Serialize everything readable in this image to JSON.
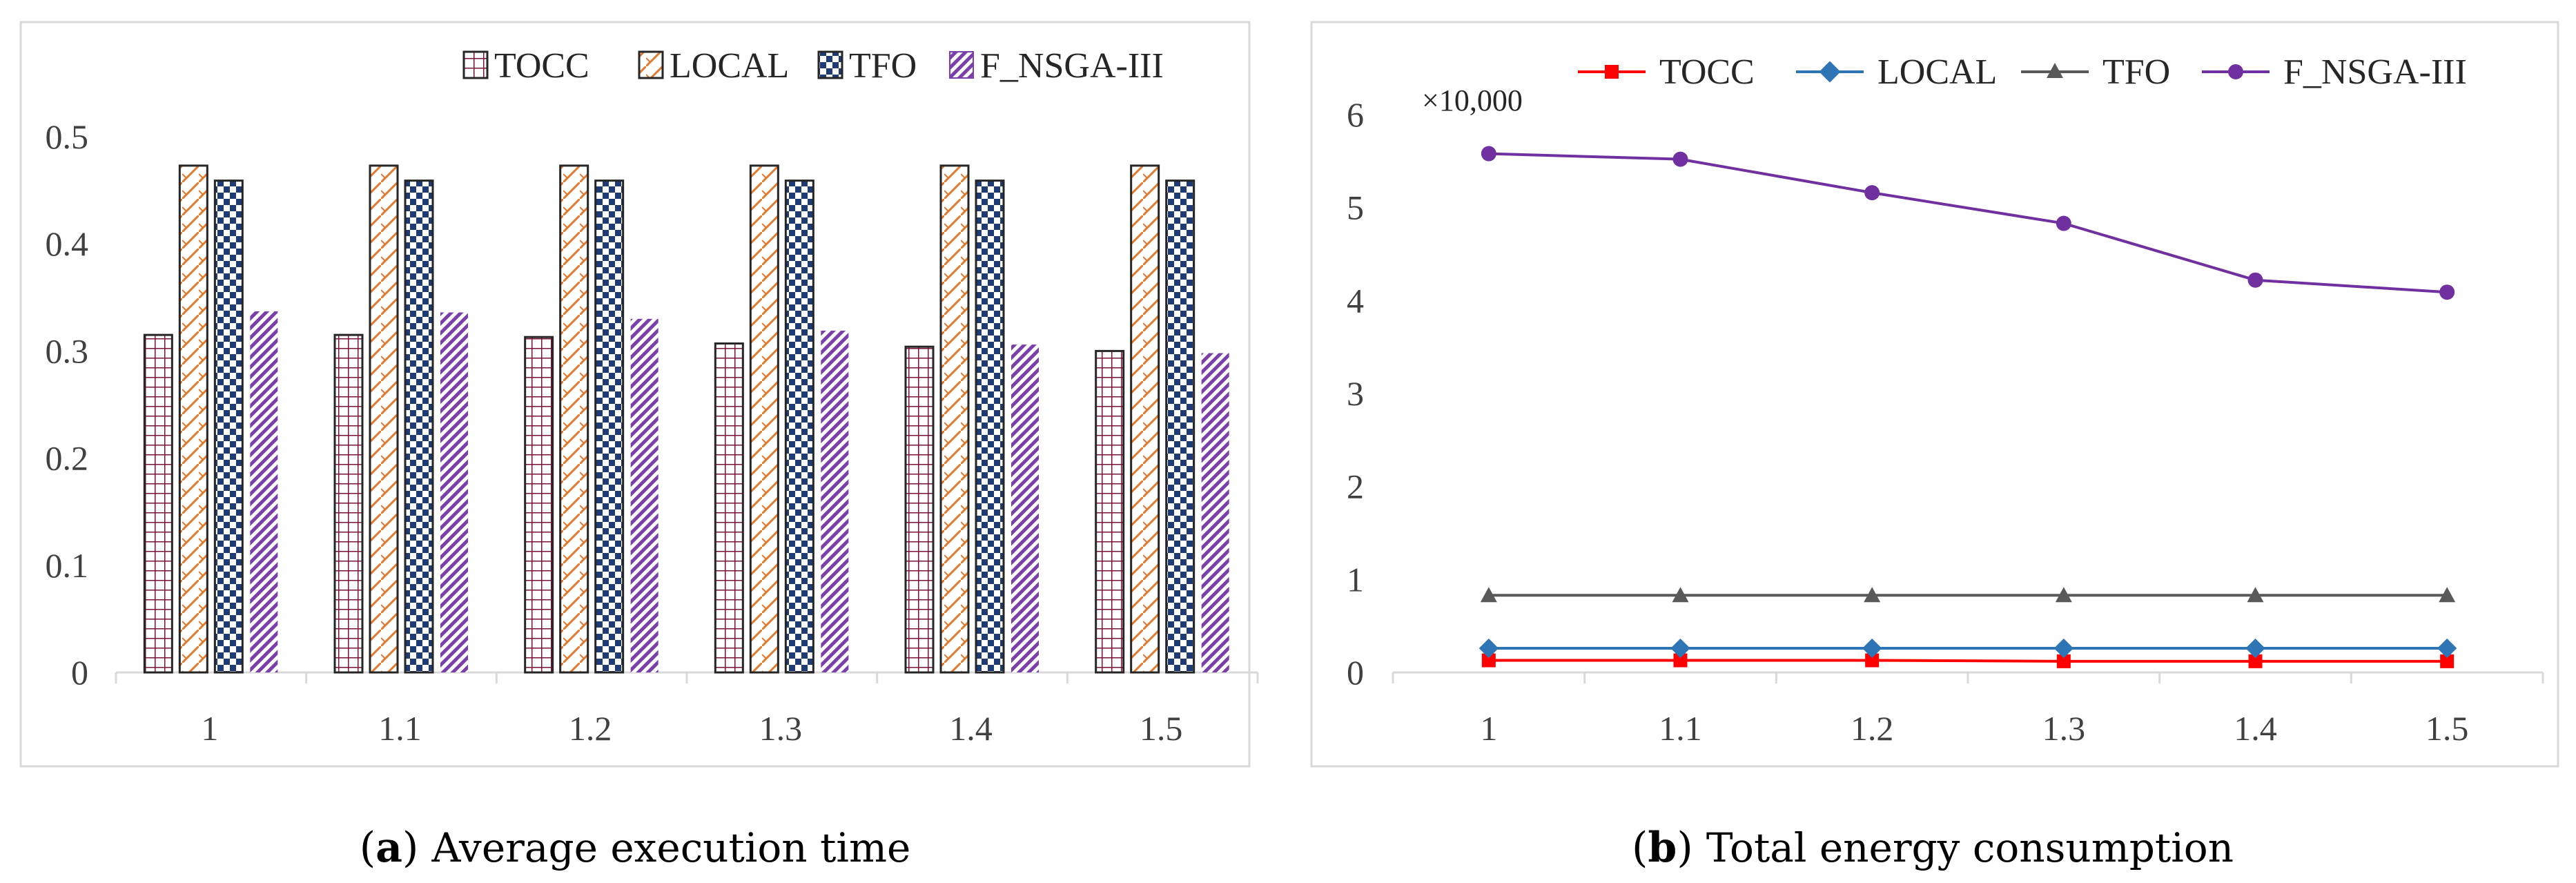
{
  "colors": {
    "TOCC": "#7b1238",
    "LOCAL": "#e07a2e",
    "TFO": "#1f3b73",
    "F_NSGA_III": "#7a3fa8",
    "line_TOCC": "#ff0000",
    "line_LOCAL": "#2e75b6",
    "line_TFO": "#595959",
    "line_F_NSGA_III": "#7030a0",
    "axis": "#d9d9d9",
    "frame": "#d9d9d9"
  },
  "chart_data": [
    {
      "type": "bar",
      "categories": [
        "1",
        "1.1",
        "1.2",
        "1.3",
        "1.4",
        "1.5"
      ],
      "series": [
        {
          "name": "TOCC",
          "values": [
            0.315,
            0.315,
            0.313,
            0.307,
            0.304,
            0.3
          ]
        },
        {
          "name": "LOCAL",
          "values": [
            0.473,
            0.473,
            0.473,
            0.473,
            0.473,
            0.473
          ]
        },
        {
          "name": "TFO",
          "values": [
            0.459,
            0.459,
            0.459,
            0.459,
            0.459,
            0.459
          ]
        },
        {
          "name": "F_NSGA-III",
          "values": [
            0.337,
            0.336,
            0.33,
            0.319,
            0.306,
            0.298
          ]
        }
      ],
      "ylim": [
        0,
        0.5
      ],
      "yticks": [
        "0",
        "0.1",
        "0.2",
        "0.3",
        "0.4",
        "0.5"
      ],
      "legend_position": "top-right",
      "caption_letter": "a",
      "caption": "Average execution time"
    },
    {
      "type": "line",
      "categories": [
        "1",
        "1.1",
        "1.2",
        "1.3",
        "1.4",
        "1.5"
      ],
      "series": [
        {
          "name": "TOCC",
          "values": [
            0.13,
            0.13,
            0.13,
            0.12,
            0.12,
            0.12
          ]
        },
        {
          "name": "LOCAL",
          "values": [
            0.26,
            0.26,
            0.26,
            0.26,
            0.26,
            0.26
          ]
        },
        {
          "name": "TFO",
          "values": [
            0.83,
            0.83,
            0.83,
            0.83,
            0.83,
            0.83
          ]
        },
        {
          "name": "F_NSGA-III",
          "values": [
            5.58,
            5.52,
            5.16,
            4.83,
            4.22,
            4.09
          ]
        }
      ],
      "ylim": [
        0,
        6
      ],
      "yticks": [
        "0",
        "1",
        "2",
        "3",
        "4",
        "5",
        "6"
      ],
      "multiplier": "×10,000",
      "legend_position": "top",
      "caption_letter": "b",
      "caption": "Total energy consumption"
    }
  ]
}
